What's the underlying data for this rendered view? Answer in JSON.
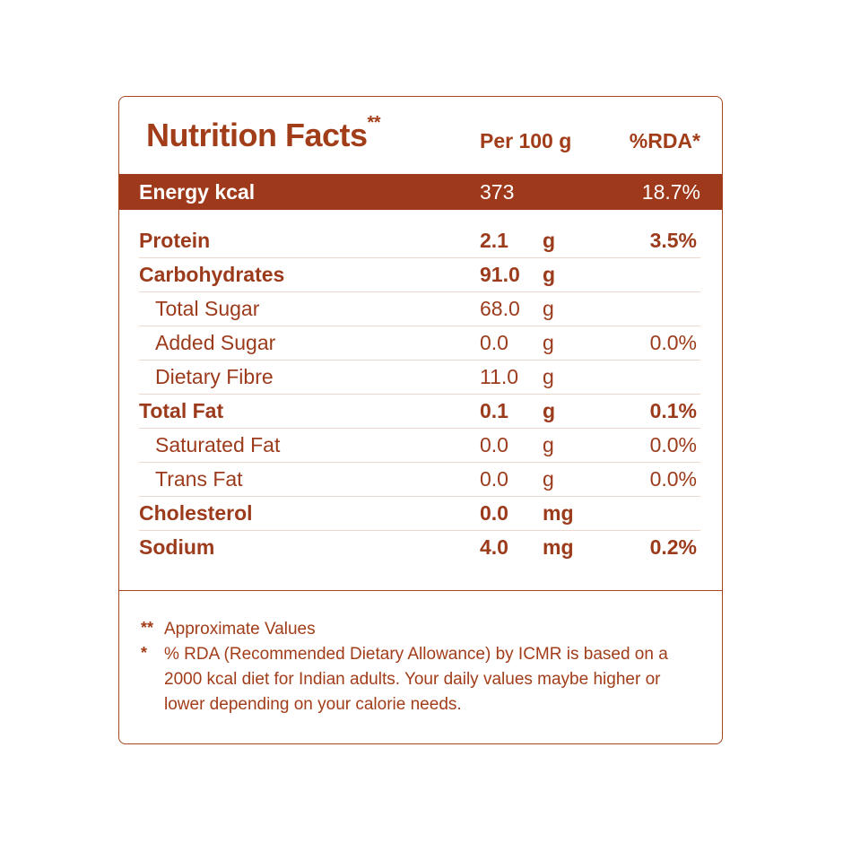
{
  "header": {
    "title": "Nutrition Facts",
    "title_marker": "**",
    "per_label": "Per 100 g",
    "rda_label": "%RDA*"
  },
  "energy": {
    "label": "Energy kcal",
    "value": "373",
    "rda": "18.7%"
  },
  "rows": [
    {
      "name": "Protein",
      "value": "2.1",
      "unit": "g",
      "rda": "3.5%",
      "bold": true
    },
    {
      "name": "Carbohydrates",
      "value": "91.0",
      "unit": "g",
      "rda": "",
      "bold": true
    },
    {
      "name": "Total Sugar",
      "value": "68.0",
      "unit": "g",
      "rda": "",
      "bold": false
    },
    {
      "name": "Added Sugar",
      "value": "0.0",
      "unit": "g",
      "rda": "0.0%",
      "bold": false
    },
    {
      "name": "Dietary Fibre",
      "value": "11.0",
      "unit": "g",
      "rda": "",
      "bold": false
    },
    {
      "name": "Total Fat",
      "value": "0.1",
      "unit": "g",
      "rda": "0.1%",
      "bold": true
    },
    {
      "name": "Saturated Fat",
      "value": "0.0",
      "unit": "g",
      "rda": "0.0%",
      "bold": false
    },
    {
      "name": "Trans Fat",
      "value": "0.0",
      "unit": "g",
      "rda": "0.0%",
      "bold": false
    },
    {
      "name": "Cholesterol",
      "value": "0.0",
      "unit": "mg",
      "rda": "",
      "bold": true
    },
    {
      "name": "Sodium",
      "value": "4.0",
      "unit": "mg",
      "rda": "0.2%",
      "bold": true
    }
  ],
  "notes": {
    "note1_marker": "**",
    "note1_text": "Approximate Values",
    "note2_marker": "*",
    "note2_text": "% RDA (Recommended Dietary Allowance) by ICMR is based on a 2000 kcal diet for Indian adults. Your daily values maybe higher or lower depending on your calorie needs."
  },
  "colors": {
    "brand": "#9e3a1b",
    "text": "#a23d1a",
    "rule": "#ead7ce"
  }
}
